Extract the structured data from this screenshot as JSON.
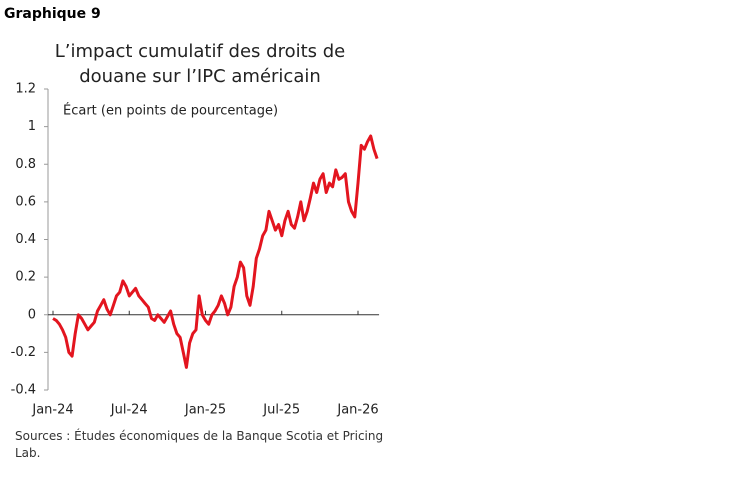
{
  "header": "Graphique 9",
  "chart_data": {
    "type": "line",
    "title": [
      "L’impact cumulatif des droits de",
      "douane sur l’IPC américain"
    ],
    "subtitle": "Écart (en points de pourcentage)",
    "categories": [
      "Jan-24",
      null,
      null,
      null,
      null,
      null,
      null,
      null,
      null,
      null,
      null,
      null,
      null,
      null,
      null,
      null,
      null,
      null,
      null,
      null,
      null,
      null,
      null,
      null,
      "Jul-24",
      null,
      null,
      null,
      null,
      null,
      null,
      null,
      null,
      null,
      null,
      null,
      null,
      null,
      null,
      null,
      null,
      null,
      null,
      null,
      null,
      null,
      null,
      null,
      "Jan-25",
      null,
      null,
      null,
      null,
      null,
      null,
      null,
      null,
      null,
      null,
      null,
      null,
      null,
      null,
      null,
      null,
      null,
      null,
      null,
      null,
      null,
      null,
      null,
      "Jul-25",
      null,
      null,
      null,
      null,
      null,
      null,
      null,
      null,
      null,
      null,
      null,
      null,
      null,
      null,
      null,
      null,
      null,
      null,
      null,
      null,
      null,
      null,
      null,
      "Jan-26",
      null,
      null,
      null,
      null,
      null,
      null
    ],
    "series": [
      {
        "color": "#e3151f",
        "values": [
          -0.02,
          -0.03,
          -0.05,
          -0.08,
          -0.12,
          -0.2,
          -0.22,
          -0.1,
          0.0,
          -0.02,
          -0.05,
          -0.08,
          -0.06,
          -0.04,
          0.02,
          0.05,
          0.08,
          0.03,
          0.0,
          0.05,
          0.1,
          0.12,
          0.18,
          0.15,
          0.1,
          0.12,
          0.14,
          0.1,
          0.08,
          0.06,
          0.04,
          -0.02,
          -0.03,
          0.0,
          -0.02,
          -0.04,
          -0.01,
          0.02,
          -0.05,
          -0.1,
          -0.12,
          -0.2,
          -0.28,
          -0.15,
          -0.1,
          -0.08,
          0.1,
          0.0,
          -0.03,
          -0.05,
          0.0,
          0.02,
          0.05,
          0.1,
          0.06,
          0.0,
          0.04,
          0.15,
          0.2,
          0.28,
          0.25,
          0.1,
          0.05,
          0.15,
          0.3,
          0.35,
          0.42,
          0.45,
          0.55,
          0.5,
          0.45,
          0.48,
          0.42,
          0.5,
          0.55,
          0.48,
          0.46,
          0.52,
          0.6,
          0.5,
          0.55,
          0.62,
          0.7,
          0.65,
          0.72,
          0.75,
          0.65,
          0.7,
          0.68,
          0.77,
          0.72,
          0.73,
          0.75,
          0.6,
          0.55,
          0.52,
          0.7,
          0.9,
          0.88,
          0.92,
          0.95,
          0.88,
          0.83
        ]
      }
    ],
    "ylim": [
      -0.4,
      1.2
    ],
    "yticks": [
      -0.4,
      -0.2,
      0,
      0.2,
      0.4,
      0.6,
      0.8,
      1,
      1.2
    ],
    "source": "Sources : Études économiques de la Banque Scotia et Pricing Lab."
  }
}
